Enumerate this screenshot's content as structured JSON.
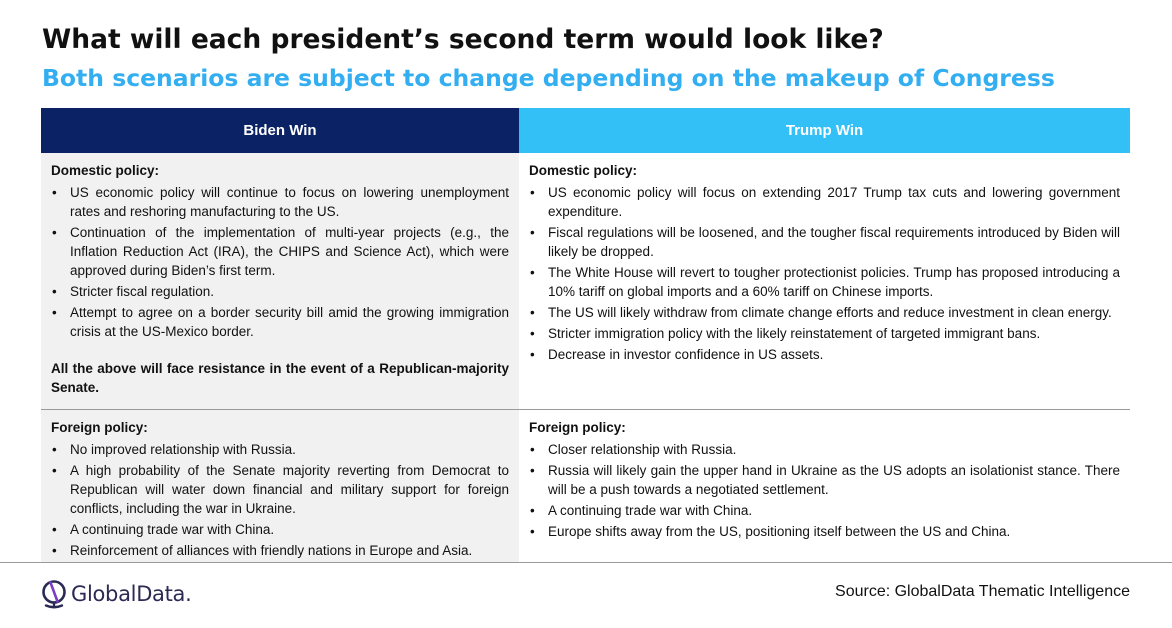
{
  "title": "What  will each president’s second term would look like?",
  "subtitle": "Both scenarios are subject to change depending on the makeup of Congress",
  "colors": {
    "subtitle": "#33aef0",
    "biden_header_bg": "#0b2265",
    "trump_header_bg": "#33c0f7",
    "cell_shade": "#f1f1f1"
  },
  "table": {
    "biden": {
      "header": "Biden Win",
      "domestic": {
        "heading": "Domestic policy:",
        "items": [
          "US economic policy will continue to focus on lowering unemployment rates and reshoring manufacturing to the US.",
          "Continuation of the implementation of multi-year projects (e.g., the Inflation Reduction Act (IRA), the CHIPS and Science Act), which were approved during Biden’s first term.",
          "Stricter fiscal regulation.",
          "Attempt to agree on a border security bill amid the growing immigration crisis at the US-Mexico border."
        ],
        "note": "All the above will face resistance in the event of a Republican-majority Senate."
      },
      "foreign": {
        "heading": "Foreign policy:",
        "items": [
          "No improved relationship with Russia.",
          "A high probability of the Senate majority reverting from Democrat to Republican will water down financial and military support for foreign conflicts, including the war in Ukraine.",
          "A continuing trade war with China.",
          "Reinforcement of alliances with friendly nations in Europe and Asia."
        ]
      }
    },
    "trump": {
      "header": "Trump Win",
      "domestic": {
        "heading": "Domestic policy:",
        "items": [
          "US economic policy will focus on extending 2017 Trump tax cuts and lowering government expenditure.",
          "Fiscal regulations will be loosened, and the tougher fiscal requirements introduced by Biden will likely be dropped.",
          "The White House will revert to tougher protectionist policies. Trump has proposed introducing a 10% tariff on global imports and a 60% tariff on Chinese imports.",
          "The US will likely withdraw from climate change efforts and reduce investment in clean energy.",
          "Stricter immigration policy with the likely reinstatement of targeted immigrant bans.",
          "Decrease in investor confidence in US assets."
        ]
      },
      "foreign": {
        "heading": "Foreign policy:",
        "items": [
          "Closer relationship with Russia.",
          "Russia will likely gain the upper hand in Ukraine as the US adopts an isolationist stance. There will be a push towards a negotiated settlement.",
          "A continuing trade war with China.",
          "Europe shifts away from the US, positioning itself between the US and China."
        ]
      }
    }
  },
  "footer": {
    "logo_text": "GlobalData.",
    "logo_icon": "globaldata-logo-icon",
    "source": "Source: GlobalData Thematic Intelligence"
  }
}
